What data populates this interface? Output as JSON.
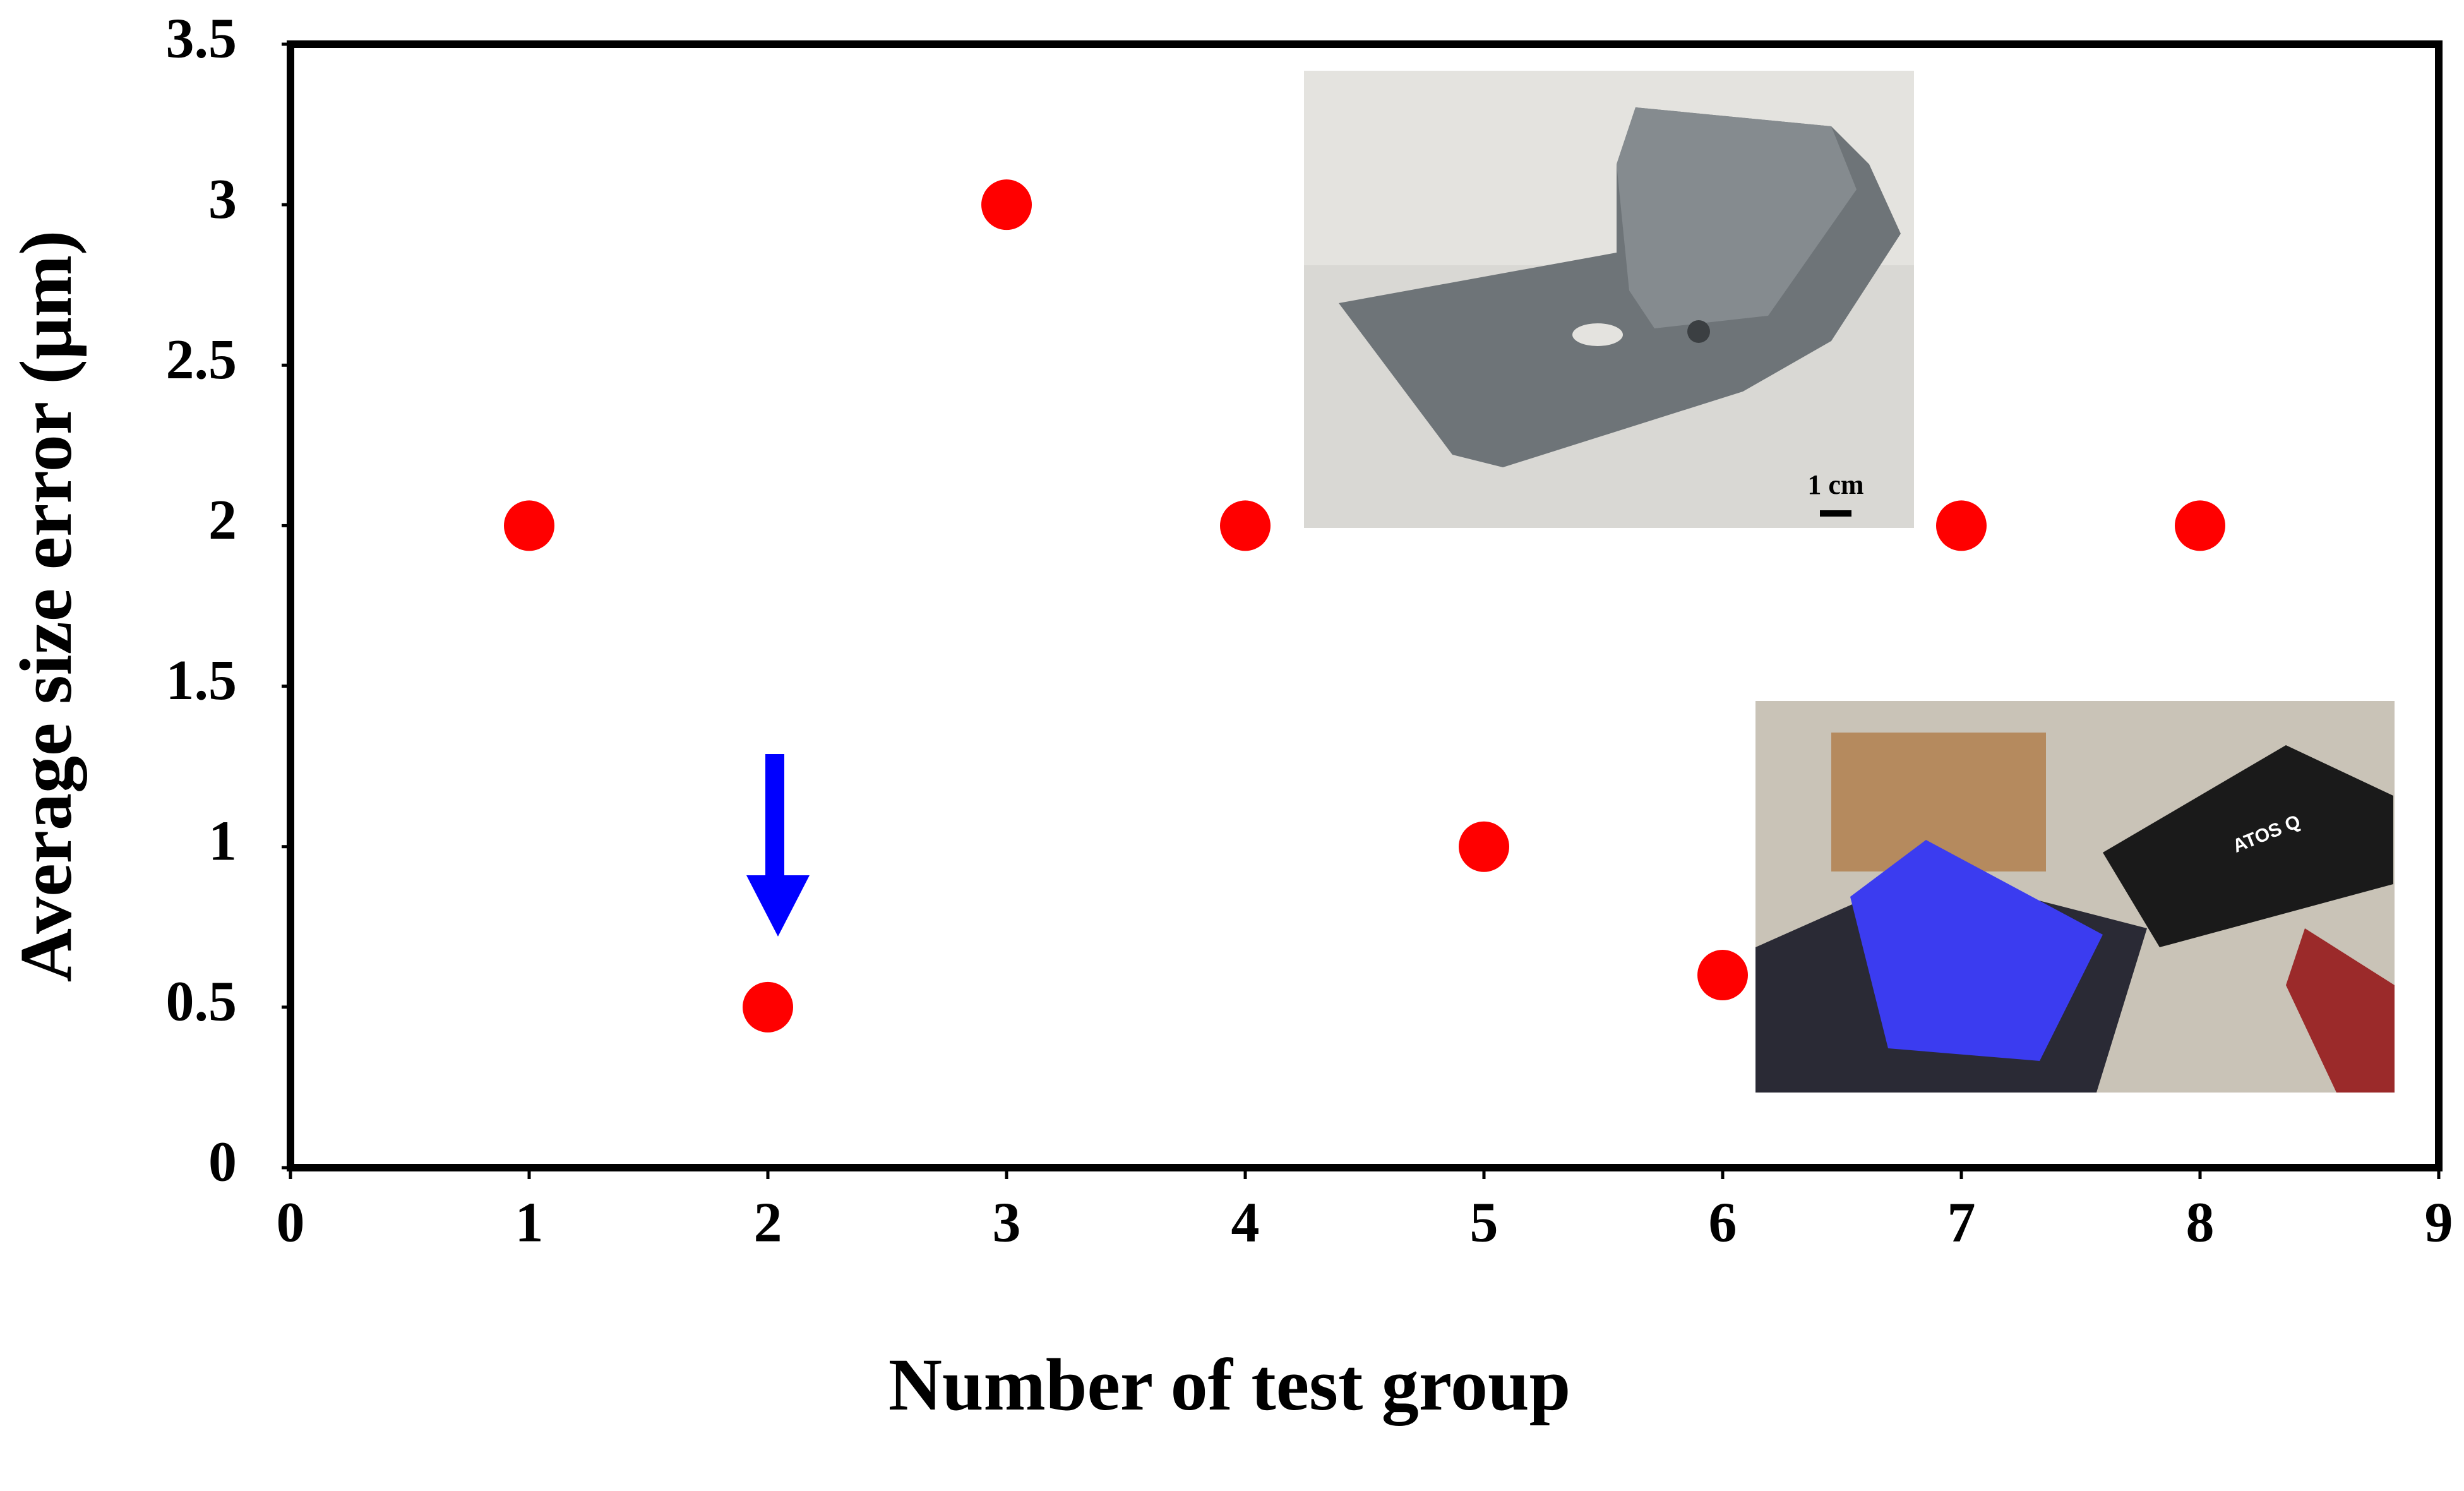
{
  "chart_data": {
    "type": "scatter",
    "x_label": "Number of test group",
    "y_label": "Average size error (μm)",
    "x": [
      1,
      2,
      3,
      4,
      5,
      6,
      7,
      8
    ],
    "series": [
      {
        "name": "Average size error",
        "color": "#ff0000",
        "values": [
          2,
          0.5,
          3,
          2,
          1,
          0.6,
          2,
          2
        ]
      }
    ],
    "xlim": [
      0,
      9
    ],
    "xticks": [
      0,
      1,
      2,
      3,
      4,
      5,
      6,
      7,
      8,
      9
    ],
    "ylim": [
      0,
      3.5
    ],
    "yticks": [
      0,
      0.5,
      1,
      1.5,
      2,
      2.5,
      3,
      3.5
    ],
    "grid": false,
    "annotations": {
      "scale_bar": "1 cm",
      "scanner_label": "ATOS Q"
    }
  }
}
